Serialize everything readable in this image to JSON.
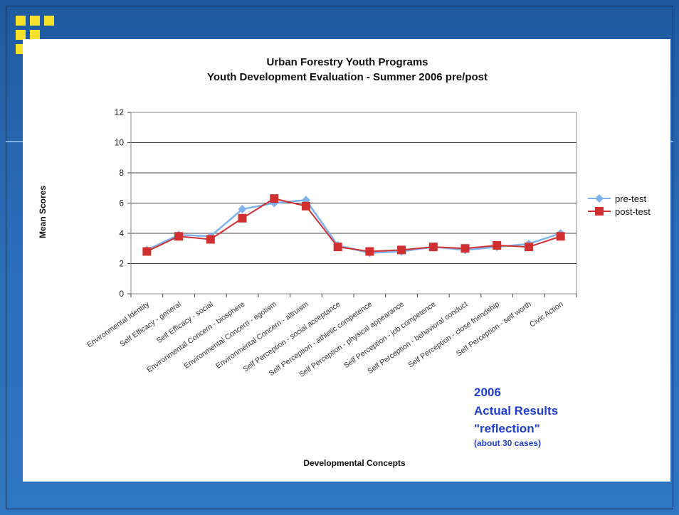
{
  "colors": {
    "background": "#2a6cb8",
    "accent_squares": "#f7e12a",
    "pre_test": "#7fb2ec",
    "post_test": "#d03030",
    "annotation": "#1f3fd1"
  },
  "chart_data": {
    "type": "line",
    "title": "Urban Forestry Youth Programs",
    "subtitle": "Youth Development Evaluation - Summer 2006 pre/post",
    "xlabel": "Developmental Concepts",
    "ylabel": "Mean Scores",
    "ylim": [
      0,
      12
    ],
    "yticks": [
      "0",
      "2",
      "4",
      "6",
      "8",
      "10",
      "12"
    ],
    "grid": true,
    "legend_position": "right",
    "categories": [
      "Environmental Identity",
      "Self Efficacy - general",
      "Self Efficacy - social",
      "Environmental Concern - biosphere",
      "Environmental Concern - egotism",
      "Environmental Concern - altruism",
      "Self Perception - social acceptance",
      "Self Perception - athletic competence",
      "Self Perception - physical appearance",
      "Self Perception - job competence",
      "Self Perception - behavioral conduct",
      "Self Perception - close friendship",
      "Self Perception - self worth",
      "Civic Action"
    ],
    "series": [
      {
        "name": "pre-test",
        "marker": "diamond",
        "values": [
          2.9,
          3.9,
          3.8,
          5.6,
          6.0,
          6.2,
          3.2,
          2.7,
          2.8,
          3.1,
          2.9,
          3.1,
          3.3,
          4.0
        ]
      },
      {
        "name": "post-test",
        "marker": "square",
        "values": [
          2.8,
          3.8,
          3.6,
          5.0,
          6.3,
          5.8,
          3.1,
          2.8,
          2.9,
          3.1,
          3.0,
          3.2,
          3.1,
          3.8
        ]
      }
    ],
    "annotation": {
      "line1": "2006",
      "line2": "Actual Results",
      "line3": "\"reflection\"",
      "line4": "(about 30 cases)"
    }
  }
}
